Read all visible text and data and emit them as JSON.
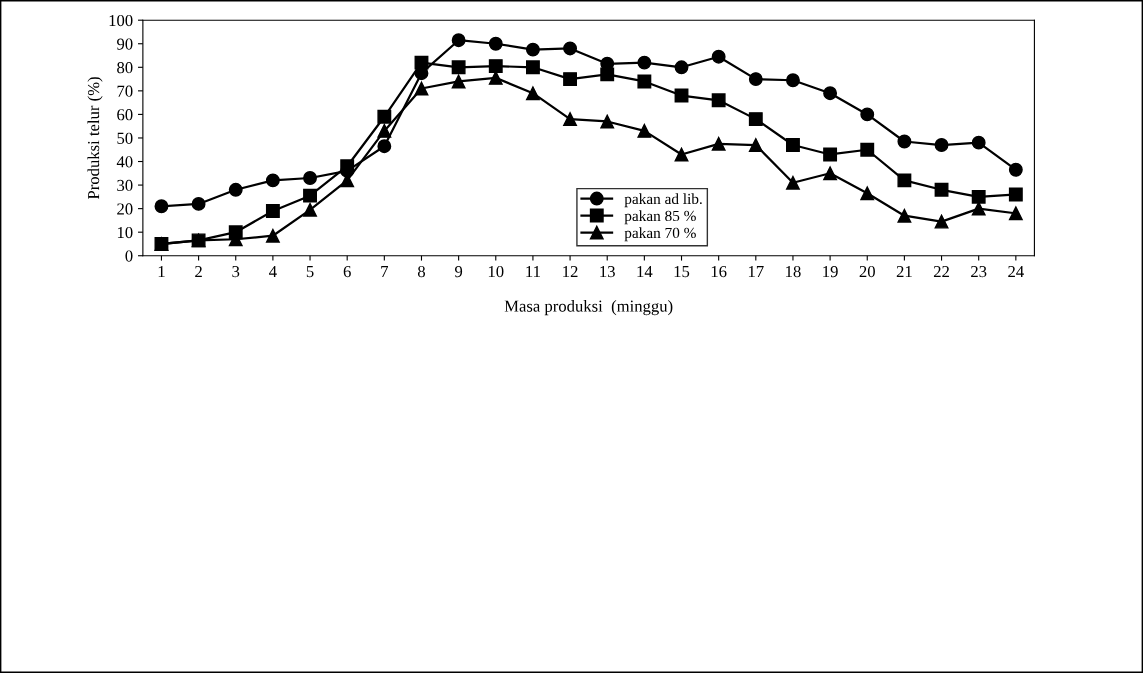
{
  "chart_data": {
    "type": "line",
    "xlabel": "Masa produksi  (minggu)",
    "ylabel": "Produksi telur (%)",
    "categories": [
      "1",
      "2",
      "3",
      "4",
      "5",
      "6",
      "7",
      "8",
      "9",
      "10",
      "11",
      "12",
      "13",
      "14",
      "15",
      "16",
      "17",
      "18",
      "19",
      "20",
      "21",
      "22",
      "23",
      "24"
    ],
    "series": [
      {
        "name": "pakan ad lib.",
        "color": "#000000",
        "marker": "circle",
        "values": [
          21,
          22,
          28,
          32,
          33,
          36,
          46.5,
          77.5,
          91.5,
          90,
          87.5,
          88,
          81.5,
          82,
          80,
          84.5,
          75,
          74.5,
          69,
          60,
          48.5,
          47,
          48,
          36.5
        ]
      },
      {
        "name": "pakan 85 %",
        "color": "#000000",
        "marker": "square",
        "values": [
          5,
          6.5,
          10,
          19,
          25.5,
          38,
          59,
          82,
          80,
          80.5,
          80,
          75,
          77,
          74,
          68,
          66,
          58,
          47,
          43,
          45,
          32,
          28,
          25,
          26
        ]
      },
      {
        "name": "pakan 70 %",
        "color": "#000000",
        "marker": "triangle",
        "values": [
          5,
          6.5,
          7,
          8.5,
          19.5,
          32,
          53,
          71,
          74,
          75.5,
          69,
          58,
          57,
          53,
          43,
          47.5,
          47,
          31,
          35,
          26.5,
          17,
          14.5,
          20,
          18
        ]
      }
    ],
    "ylim": [
      0,
      100
    ],
    "yticks": [
      0,
      10,
      20,
      30,
      40,
      50,
      60,
      70,
      80,
      90,
      100
    ],
    "grid": false,
    "legend": "bottom",
    "line_style": "solid"
  }
}
